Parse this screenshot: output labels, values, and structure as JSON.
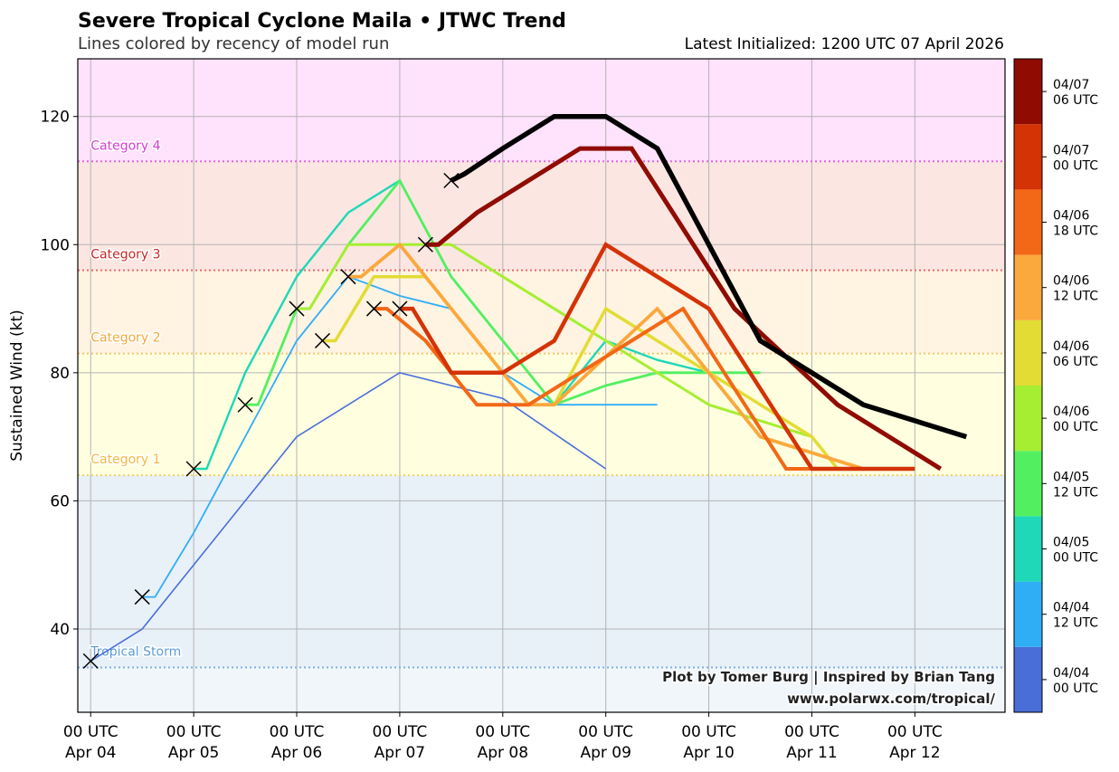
{
  "chart_data": {
    "type": "line",
    "title": "Severe Tropical Cyclone Maila • JTWC Trend",
    "subtitle": "Lines colored by recency of model run",
    "subtitle_right": "Latest Initialized: 1200 UTC 07 April 2026",
    "ylabel": "Sustained Wind (kt)",
    "xlabel": "",
    "xlim_hours": [
      -3,
      213
    ],
    "ylim": [
      27,
      129
    ],
    "yticks": [
      40,
      60,
      80,
      100,
      120
    ],
    "grid": true,
    "xticks": [
      {
        "hour": 0,
        "line1": "00 UTC",
        "line2": "Apr 04"
      },
      {
        "hour": 24,
        "line1": "00 UTC",
        "line2": "Apr 05"
      },
      {
        "hour": 48,
        "line1": "00 UTC",
        "line2": "Apr 06"
      },
      {
        "hour": 72,
        "line1": "00 UTC",
        "line2": "Apr 07"
      },
      {
        "hour": 96,
        "line1": "00 UTC",
        "line2": "Apr 08"
      },
      {
        "hour": 120,
        "line1": "00 UTC",
        "line2": "Apr 09"
      },
      {
        "hour": 144,
        "line1": "00 UTC",
        "line2": "Apr 10"
      },
      {
        "hour": 168,
        "line1": "00 UTC",
        "line2": "Apr 11"
      },
      {
        "hour": 192,
        "line1": "00 UTC",
        "line2": "Apr 12"
      }
    ],
    "categories": [
      {
        "name": "Tropical Storm",
        "threshold": 34,
        "band_top": 64,
        "band_color": "#e8f0f8",
        "line_color": "#7fb0e0",
        "label_color": "#5b9bd5"
      },
      {
        "name": "Category 1",
        "threshold": 64,
        "band_top": 83,
        "band_color": "#ffffe0",
        "line_color": "#f4d35e",
        "label_color": "#f4b942"
      },
      {
        "name": "Category 2",
        "threshold": 83,
        "band_top": 96,
        "band_color": "#fff3e2",
        "line_color": "#f7c56a",
        "label_color": "#f2a93b"
      },
      {
        "name": "Category 3",
        "threshold": 96,
        "band_top": 113,
        "band_color": "#fbe6e2",
        "line_color": "#e86a6a",
        "label_color": "#c62828"
      },
      {
        "name": "Category 4",
        "threshold": 113,
        "band_top": 129,
        "band_color": "#ffe2fc",
        "line_color": "#e264e2",
        "label_color": "#d63bd6"
      }
    ],
    "below_ts_band_color": "#f1f6fb",
    "series": [
      {
        "name": "04/04 00 UTC",
        "color": "#4a6ed8",
        "width": 1.6,
        "points": [
          [
            0,
            35
          ],
          [
            12,
            40
          ],
          [
            24,
            50
          ],
          [
            48,
            70
          ],
          [
            72,
            80
          ],
          [
            96,
            76
          ],
          [
            120,
            65
          ]
        ]
      },
      {
        "name": "04/04 12 UTC",
        "color": "#30aef5",
        "width": 1.8,
        "points": [
          [
            12,
            45
          ],
          [
            15,
            45
          ],
          [
            24,
            55
          ],
          [
            48,
            85
          ],
          [
            60,
            95
          ],
          [
            72,
            92
          ],
          [
            84,
            90
          ],
          [
            96,
            80
          ],
          [
            108,
            75
          ],
          [
            120,
            75
          ],
          [
            132,
            75
          ]
        ]
      },
      {
        "name": "04/05 00 UTC",
        "color": "#1ed8b7",
        "width": 2.4,
        "points": [
          [
            24,
            65
          ],
          [
            27,
            65
          ],
          [
            36,
            80
          ],
          [
            48,
            95
          ],
          [
            60,
            105
          ],
          [
            72,
            110
          ],
          [
            84,
            95
          ],
          [
            96,
            85
          ],
          [
            108,
            75
          ],
          [
            120,
            85
          ],
          [
            132,
            82
          ],
          [
            144,
            80
          ],
          [
            156,
            80
          ]
        ]
      },
      {
        "name": "04/05 12 UTC",
        "color": "#52f060",
        "width": 2.8,
        "points": [
          [
            36,
            75
          ],
          [
            39,
            75
          ],
          [
            48,
            90
          ],
          [
            51,
            90
          ],
          [
            60,
            100
          ],
          [
            72,
            110
          ],
          [
            84,
            95
          ],
          [
            96,
            85
          ],
          [
            108,
            75
          ],
          [
            120,
            78
          ],
          [
            132,
            80
          ],
          [
            144,
            80
          ],
          [
            156,
            80
          ]
        ]
      },
      {
        "name": "04/06 00 UTC",
        "color": "#a6ee32",
        "width": 3.0,
        "points": [
          [
            48,
            90
          ],
          [
            51,
            90
          ],
          [
            60,
            100
          ],
          [
            72,
            100
          ],
          [
            84,
            100
          ],
          [
            96,
            95
          ],
          [
            120,
            85
          ],
          [
            144,
            75
          ],
          [
            168,
            70
          ]
        ]
      },
      {
        "name": "04/06 06 UTC",
        "color": "#e2dc34",
        "width": 3.5,
        "points": [
          [
            54,
            85
          ],
          [
            57,
            85
          ],
          [
            66,
            95
          ],
          [
            72,
            95
          ],
          [
            78,
            95
          ],
          [
            84,
            90
          ],
          [
            96,
            80
          ],
          [
            102,
            75
          ],
          [
            108,
            75
          ],
          [
            120,
            90
          ],
          [
            132,
            85
          ],
          [
            144,
            80
          ],
          [
            156,
            75
          ],
          [
            168,
            70
          ],
          [
            174,
            65
          ]
        ]
      },
      {
        "name": "04/06 12 UTC",
        "color": "#fba83c",
        "width": 3.8,
        "points": [
          [
            60,
            95
          ],
          [
            63,
            95
          ],
          [
            72,
            100
          ],
          [
            84,
            90
          ],
          [
            96,
            80
          ],
          [
            102,
            75
          ],
          [
            108,
            75
          ],
          [
            132,
            90
          ],
          [
            156,
            70
          ],
          [
            180,
            65
          ]
        ]
      },
      {
        "name": "04/06 18 UTC",
        "color": "#f26816",
        "width": 4.0,
        "points": [
          [
            66,
            90
          ],
          [
            69,
            90
          ],
          [
            78,
            85
          ],
          [
            84,
            80
          ],
          [
            90,
            75
          ],
          [
            102,
            75
          ],
          [
            114,
            80
          ],
          [
            126,
            85
          ],
          [
            138,
            90
          ],
          [
            162,
            65
          ],
          [
            186,
            65
          ]
        ]
      },
      {
        "name": "04/07 00 UTC",
        "color": "#d43306",
        "width": 4.5,
        "points": [
          [
            72,
            90
          ],
          [
            75,
            90
          ],
          [
            84,
            80
          ],
          [
            96,
            80
          ],
          [
            108,
            85
          ],
          [
            120,
            100
          ],
          [
            144,
            90
          ],
          [
            168,
            65
          ],
          [
            192,
            65
          ]
        ]
      },
      {
        "name": "04/07 06 UTC",
        "color": "#900c02",
        "width": 5.0,
        "points": [
          [
            78,
            100
          ],
          [
            81,
            100
          ],
          [
            90,
            105
          ],
          [
            114,
            115
          ],
          [
            126,
            115
          ],
          [
            150,
            90
          ],
          [
            174,
            75
          ],
          [
            198,
            65
          ]
        ]
      },
      {
        "name": "04/07 12 UTC",
        "color": "#000000",
        "width": 5.5,
        "points": [
          [
            84,
            110
          ],
          [
            87,
            111
          ],
          [
            96,
            115
          ],
          [
            108,
            120
          ],
          [
            120,
            120
          ],
          [
            132,
            115
          ],
          [
            156,
            85
          ],
          [
            180,
            75
          ],
          [
            204,
            70
          ]
        ]
      }
    ],
    "markers": [
      [
        0,
        35
      ],
      [
        12,
        45
      ],
      [
        24,
        65
      ],
      [
        36,
        75
      ],
      [
        48,
        90
      ],
      [
        54,
        85
      ],
      [
        60,
        95
      ],
      [
        66,
        90
      ],
      [
        72,
        90
      ],
      [
        78,
        100
      ],
      [
        84,
        110
      ]
    ],
    "colorbar": [
      {
        "label1": "04/04",
        "label2": "00 UTC",
        "color": "#4a6ed8"
      },
      {
        "label1": "04/04",
        "label2": "12 UTC",
        "color": "#30aef5"
      },
      {
        "label1": "04/05",
        "label2": "00 UTC",
        "color": "#1ed8b7"
      },
      {
        "label1": "04/05",
        "label2": "12 UTC",
        "color": "#52f060"
      },
      {
        "label1": "04/06",
        "label2": "00 UTC",
        "color": "#a6ee32"
      },
      {
        "label1": "04/06",
        "label2": "06 UTC",
        "color": "#e2dc34"
      },
      {
        "label1": "04/06",
        "label2": "12 UTC",
        "color": "#fba83c"
      },
      {
        "label1": "04/06",
        "label2": "18 UTC",
        "color": "#f26816"
      },
      {
        "label1": "04/07",
        "label2": "00 UTC",
        "color": "#d43306"
      },
      {
        "label1": "04/07",
        "label2": "06 UTC",
        "color": "#900c02"
      }
    ],
    "credit_line1": "Plot by Tomer Burg | Inspired by Brian Tang",
    "credit_line2": "www.polarwx.com/tropical/"
  }
}
